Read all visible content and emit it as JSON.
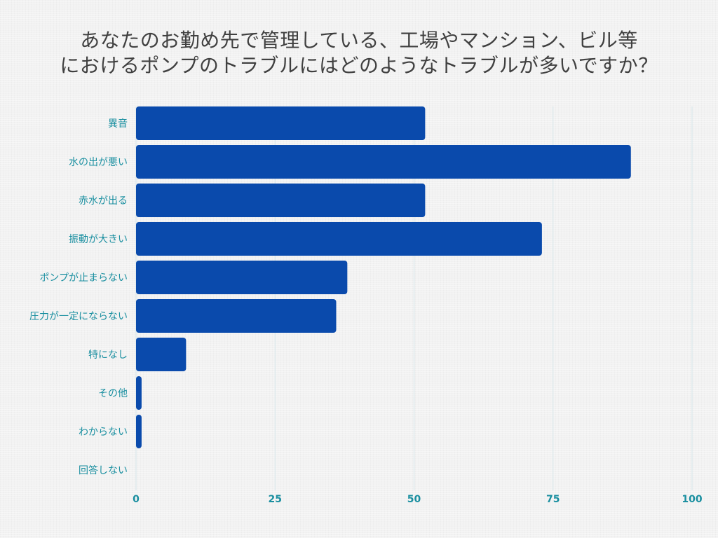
{
  "title": {
    "line1": "あなたのお勤め先で管理している、工場やマンション、ビル等",
    "line2": "におけるポンプのトラブルにはどのようなトラブルが多いですか？"
  },
  "colors": {
    "bar": "#0a4aac",
    "label": "#1a8fa0",
    "grid": "#d6e6ea",
    "title": "#404040"
  },
  "chart_data": {
    "type": "bar",
    "orientation": "horizontal",
    "categories": [
      "異音",
      "水の出が悪い",
      "赤水が出る",
      "振動が大きい",
      "ポンプが止まらない",
      "圧力が一定にならない",
      "特になし",
      "その他",
      "わからない",
      "回答しない"
    ],
    "values": [
      52,
      89,
      52,
      73,
      38,
      36,
      9,
      1,
      1,
      0
    ],
    "xlim": [
      0,
      100
    ],
    "xticks": [
      "0",
      "25",
      "50",
      "75",
      "100"
    ],
    "grid": true
  }
}
